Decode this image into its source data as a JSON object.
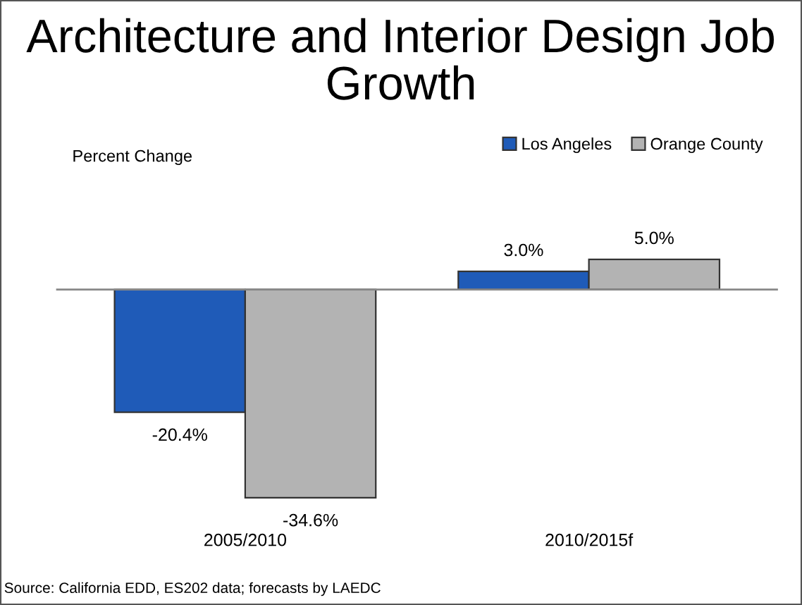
{
  "chart_data": {
    "type": "bar",
    "title": "Architecture and Interior Design Job Growth",
    "categories": [
      "2005/2010",
      "2010/2015f"
    ],
    "series": [
      {
        "name": "Los Angeles",
        "color": "#1f5bb8",
        "values": [
          -20.4,
          3.0
        ],
        "value_labels": [
          "-20.4%",
          "3.0%"
        ]
      },
      {
        "name": "Orange County",
        "color": "#b3b3b3",
        "values": [
          -34.6,
          5.0
        ],
        "value_labels": [
          "-34.6%",
          "5.0%"
        ]
      }
    ],
    "legend": "top right",
    "grid": false,
    "annotations": [
      "Percent Change",
      "Source: California EDD, ES202 data; forecasts by LAEDC"
    ]
  }
}
